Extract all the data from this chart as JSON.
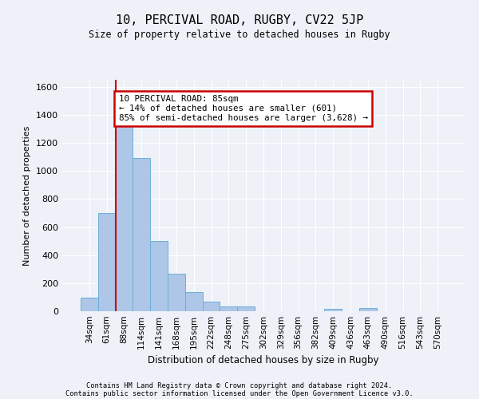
{
  "title": "10, PERCIVAL ROAD, RUGBY, CV22 5JP",
  "subtitle": "Size of property relative to detached houses in Rugby",
  "xlabel": "Distribution of detached houses by size in Rugby",
  "ylabel": "Number of detached properties",
  "bar_labels": [
    "34sqm",
    "61sqm",
    "88sqm",
    "114sqm",
    "141sqm",
    "168sqm",
    "195sqm",
    "222sqm",
    "248sqm",
    "275sqm",
    "302sqm",
    "329sqm",
    "356sqm",
    "382sqm",
    "409sqm",
    "436sqm",
    "463sqm",
    "490sqm",
    "516sqm",
    "543sqm",
    "570sqm"
  ],
  "bar_values": [
    95,
    700,
    1330,
    1095,
    500,
    270,
    135,
    70,
    35,
    35,
    0,
    0,
    0,
    0,
    15,
    0,
    20,
    0,
    0,
    0,
    0
  ],
  "bar_color": "#aec6e8",
  "bar_edge_color": "#6baed6",
  "ylim": [
    0,
    1650
  ],
  "yticks": [
    0,
    200,
    400,
    600,
    800,
    1000,
    1200,
    1400,
    1600
  ],
  "annotation_text": "10 PERCIVAL ROAD: 85sqm\n← 14% of detached houses are smaller (601)\n85% of semi-detached houses are larger (3,628) →",
  "annotation_box_color": "#ffffff",
  "annotation_border_color": "#cc0000",
  "vline_color": "#cc0000",
  "vline_x": 1.5,
  "footer_line1": "Contains HM Land Registry data © Crown copyright and database right 2024.",
  "footer_line2": "Contains public sector information licensed under the Open Government Licence v3.0.",
  "background_color": "#eef2f8",
  "grid_color": "#ffffff"
}
